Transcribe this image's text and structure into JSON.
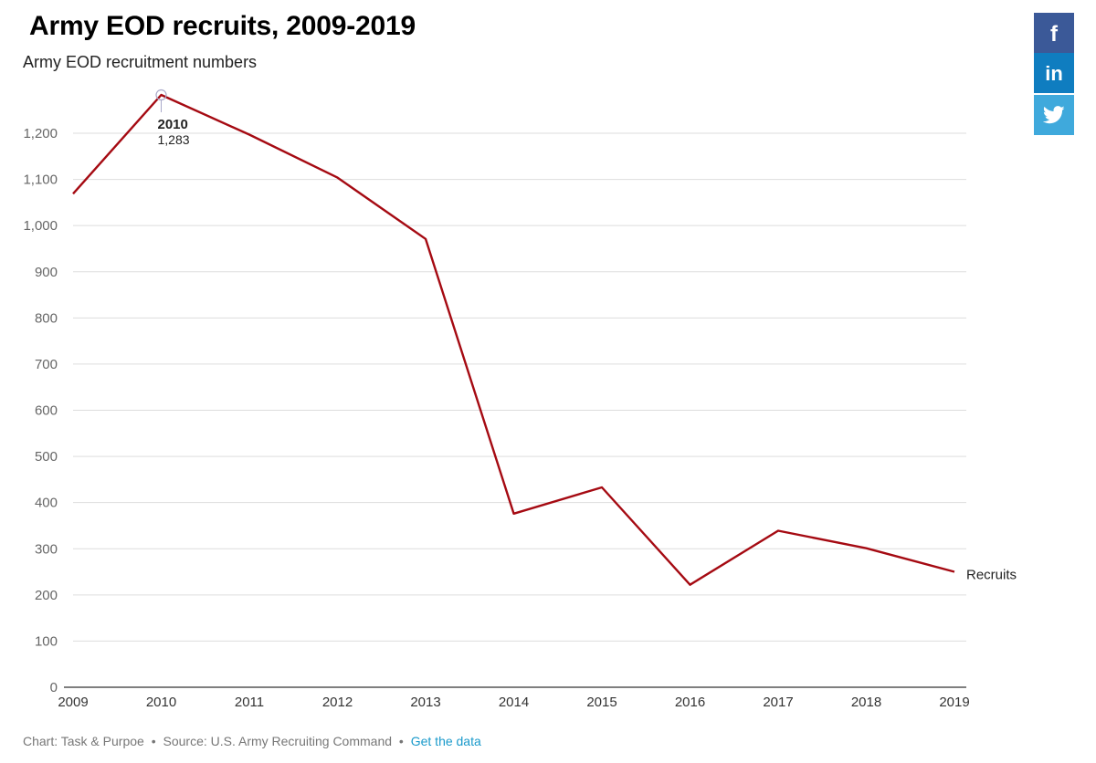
{
  "title": "Army EOD recruits, 2009-2019",
  "subtitle": "Army EOD recruitment numbers",
  "footer": {
    "chart_credit": "Chart: Task & Purpoe",
    "source": "Source: U.S. Army Recruiting Command",
    "separator": "•",
    "data_link": "Get the data"
  },
  "share": {
    "facebook_icon": "facebook-icon",
    "linkedin_icon": "linkedin-icon",
    "twitter_icon": "twitter-icon",
    "colors": {
      "facebook": "#3b5998",
      "linkedin": "#0f7dc0",
      "twitter": "#3fa9dc"
    }
  },
  "chart_data": {
    "type": "line",
    "title": "Army EOD recruits, 2009-2019",
    "subtitle": "Army EOD recruitment numbers",
    "xlabel": "",
    "ylabel": "",
    "x": [
      2009,
      2010,
      2011,
      2012,
      2013,
      2014,
      2015,
      2016,
      2017,
      2018,
      2019
    ],
    "series": [
      {
        "name": "Recruits",
        "color": "#a50a12",
        "values": [
          1069,
          1283,
          1197,
          1104,
          971,
          376,
          433,
          222,
          339,
          301,
          250
        ]
      }
    ],
    "ylim": [
      0,
      1200
    ],
    "yticks": [
      0,
      100,
      200,
      300,
      400,
      500,
      600,
      700,
      800,
      900,
      1000,
      1100,
      1200
    ],
    "ytick_labels": [
      "0",
      "100",
      "200",
      "300",
      "400",
      "500",
      "600",
      "700",
      "800",
      "900",
      "1,000",
      "1,100",
      "1,200"
    ],
    "xtick_labels": [
      "2009",
      "2010",
      "2011",
      "2012",
      "2013",
      "2014",
      "2015",
      "2016",
      "2017",
      "2018",
      "2019"
    ],
    "grid": true,
    "legend": "end-of-line label",
    "annotation": {
      "x_label": "2010",
      "value_label": "1,283",
      "index": 1
    }
  }
}
